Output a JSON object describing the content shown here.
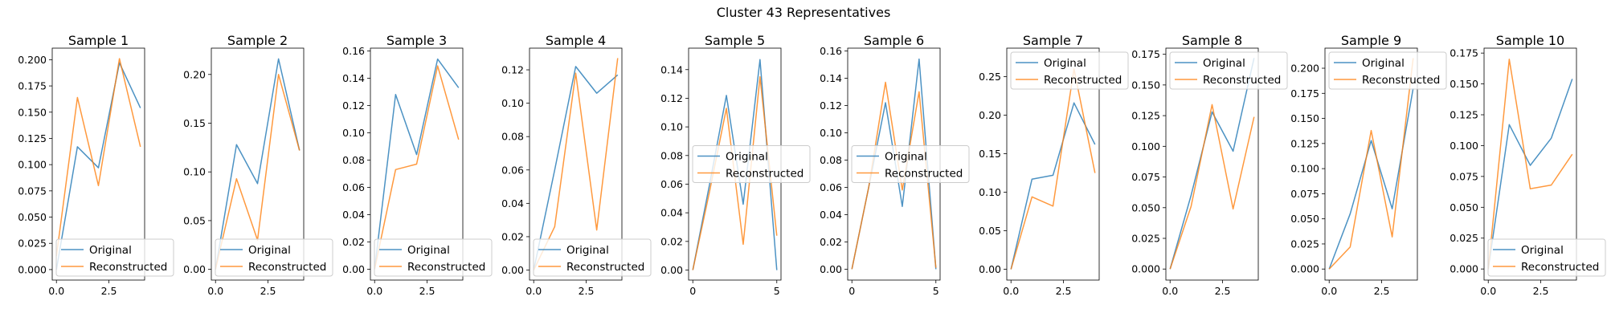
{
  "chart_data": {
    "suptitle": "Cluster 43 Representatives",
    "colors": {
      "original": "#1f77b4",
      "reconstructed": "#ff7f0e"
    },
    "panels": [
      {
        "type": "line",
        "title": "Sample 1",
        "xlim": [
          -0.2,
          4.2
        ],
        "ylim": [
          -0.01,
          0.211
        ],
        "xticks": [
          0,
          2.5
        ],
        "xtick_labels": [
          "0.0",
          "2.5"
        ],
        "yticks": [
          0,
          0.025,
          0.05,
          0.075,
          0.1,
          0.125,
          0.15,
          0.175,
          0.2
        ],
        "ytick_labels": [
          "0.000",
          "0.025",
          "0.050",
          "0.075",
          "0.100",
          "0.125",
          "0.150",
          "0.175",
          "0.200"
        ],
        "legend": "lower-left",
        "series": [
          {
            "name": "Original",
            "x": [
              0,
              1,
              2,
              3,
              4
            ],
            "y": [
              0.0,
              0.117,
              0.097,
              0.197,
              0.154
            ]
          },
          {
            "name": "Reconstructed",
            "x": [
              0,
              1,
              2,
              3,
              4
            ],
            "y": [
              0.013,
              0.164,
              0.08,
              0.201,
              0.117
            ]
          }
        ]
      },
      {
        "type": "line",
        "title": "Sample 2",
        "xlim": [
          -0.2,
          4.2
        ],
        "ylim": [
          -0.011,
          0.227
        ],
        "xticks": [
          0,
          2.5
        ],
        "xtick_labels": [
          "0.0",
          "2.5"
        ],
        "yticks": [
          0,
          0.05,
          0.1,
          0.15,
          0.2
        ],
        "ytick_labels": [
          "0.00",
          "0.05",
          "0.10",
          "0.15",
          "0.20"
        ],
        "legend": "lower-left",
        "series": [
          {
            "name": "Original",
            "x": [
              0,
              1,
              2,
              3,
              4
            ],
            "y": [
              0.0,
              0.128,
              0.088,
              0.216,
              0.122
            ]
          },
          {
            "name": "Reconstructed",
            "x": [
              0,
              1,
              2,
              3,
              4
            ],
            "y": [
              0.0,
              0.093,
              0.03,
              0.2,
              0.122
            ]
          }
        ]
      },
      {
        "type": "line",
        "title": "Sample 3",
        "xlim": [
          -0.2,
          4.2
        ],
        "ylim": [
          -0.008,
          0.162
        ],
        "xticks": [
          0,
          2.5
        ],
        "xtick_labels": [
          "0.0",
          "2.5"
        ],
        "yticks": [
          0,
          0.02,
          0.04,
          0.06,
          0.08,
          0.1,
          0.12,
          0.14,
          0.16
        ],
        "ytick_labels": [
          "0.00",
          "0.02",
          "0.04",
          "0.06",
          "0.08",
          "0.10",
          "0.12",
          "0.14",
          "0.16"
        ],
        "legend": "lower-left",
        "series": [
          {
            "name": "Original",
            "x": [
              0,
              1,
              2,
              3,
              4
            ],
            "y": [
              0.0,
              0.128,
              0.084,
              0.154,
              0.133
            ]
          },
          {
            "name": "Reconstructed",
            "x": [
              0,
              1,
              2,
              3,
              4
            ],
            "y": [
              0.0,
              0.073,
              0.077,
              0.149,
              0.095
            ]
          }
        ]
      },
      {
        "type": "line",
        "title": "Sample 4",
        "xlim": [
          -0.2,
          4.2
        ],
        "ylim": [
          -0.006,
          0.133
        ],
        "xticks": [
          0,
          2.5
        ],
        "xtick_labels": [
          "0.0",
          "2.5"
        ],
        "yticks": [
          0,
          0.02,
          0.04,
          0.06,
          0.08,
          0.1,
          0.12
        ],
        "ytick_labels": [
          "0.00",
          "0.02",
          "0.04",
          "0.06",
          "0.08",
          "0.10",
          "0.12"
        ],
        "legend": "lower-left",
        "series": [
          {
            "name": "Original",
            "x": [
              0,
              1,
              2,
              3,
              4
            ],
            "y": [
              0.0,
              0.06,
              0.122,
              0.106,
              0.117
            ]
          },
          {
            "name": "Reconstructed",
            "x": [
              0,
              1,
              2,
              3,
              4
            ],
            "y": [
              0.0,
              0.026,
              0.118,
              0.024,
              0.127
            ]
          }
        ]
      },
      {
        "type": "line",
        "title": "Sample 5",
        "xlim": [
          -0.25,
          5.25
        ],
        "ylim": [
          -0.007,
          0.155
        ],
        "xticks": [
          0,
          5
        ],
        "xtick_labels": [
          "0",
          "5"
        ],
        "yticks": [
          0,
          0.02,
          0.04,
          0.06,
          0.08,
          0.1,
          0.12,
          0.14
        ],
        "ytick_labels": [
          "0.00",
          "0.02",
          "0.04",
          "0.06",
          "0.08",
          "0.10",
          "0.12",
          "0.14"
        ],
        "legend": "center-left",
        "series": [
          {
            "name": "Original",
            "x": [
              0,
              1,
              2,
              3,
              4,
              5
            ],
            "y": [
              0.0,
              0.06,
              0.122,
              0.046,
              0.147,
              0.0
            ]
          },
          {
            "name": "Reconstructed",
            "x": [
              0,
              1,
              2,
              3,
              4,
              5
            ],
            "y": [
              0.0,
              0.055,
              0.113,
              0.018,
              0.135,
              0.024
            ]
          }
        ]
      },
      {
        "type": "line",
        "title": "Sample 6",
        "xlim": [
          -0.25,
          5.25
        ],
        "ylim": [
          -0.008,
          0.162
        ],
        "xticks": [
          0,
          5
        ],
        "xtick_labels": [
          "0",
          "5"
        ],
        "yticks": [
          0,
          0.02,
          0.04,
          0.06,
          0.08,
          0.1,
          0.12,
          0.14,
          0.16
        ],
        "ytick_labels": [
          "0.00",
          "0.02",
          "0.04",
          "0.06",
          "0.08",
          "0.10",
          "0.12",
          "0.14",
          "0.16"
        ],
        "legend": "center-left",
        "series": [
          {
            "name": "Original",
            "x": [
              0,
              1,
              2,
              3,
              4,
              5
            ],
            "y": [
              0.0,
              0.06,
              0.122,
              0.046,
              0.154,
              0.0
            ]
          },
          {
            "name": "Reconstructed",
            "x": [
              0,
              1,
              2,
              3,
              4,
              5
            ],
            "y": [
              0.0,
              0.06,
              0.137,
              0.058,
              0.13,
              0.001
            ]
          }
        ]
      },
      {
        "type": "line",
        "title": "Sample 7",
        "xlim": [
          -0.2,
          4.2
        ],
        "ylim": [
          -0.014,
          0.287
        ],
        "xticks": [
          0,
          2.5
        ],
        "xtick_labels": [
          "0.0",
          "2.5"
        ],
        "yticks": [
          0,
          0.05,
          0.1,
          0.15,
          0.2,
          0.25
        ],
        "ytick_labels": [
          "0.00",
          "0.05",
          "0.10",
          "0.15",
          "0.20",
          "0.25"
        ],
        "legend": "upper-left",
        "series": [
          {
            "name": "Original",
            "x": [
              0,
              1,
              2,
              3,
              4
            ],
            "y": [
              0.0,
              0.117,
              0.122,
              0.216,
              0.162
            ]
          },
          {
            "name": "Reconstructed",
            "x": [
              0,
              1,
              2,
              3,
              4
            ],
            "y": [
              0.0,
              0.094,
              0.082,
              0.26,
              0.125
            ]
          }
        ]
      },
      {
        "type": "line",
        "title": "Sample 8",
        "xlim": [
          -0.2,
          4.2
        ],
        "ylim": [
          -0.009,
          0.18
        ],
        "xticks": [
          0,
          2.5
        ],
        "xtick_labels": [
          "0.0",
          "2.5"
        ],
        "yticks": [
          0,
          0.025,
          0.05,
          0.075,
          0.1,
          0.125,
          0.15,
          0.175
        ],
        "ytick_labels": [
          "0.000",
          "0.025",
          "0.050",
          "0.075",
          "0.100",
          "0.125",
          "0.150",
          "0.175"
        ],
        "legend": "upper-left",
        "series": [
          {
            "name": "Original",
            "x": [
              0,
              1,
              2,
              3,
              4
            ],
            "y": [
              0.0,
              0.06,
              0.128,
              0.096,
              0.172
            ]
          },
          {
            "name": "Reconstructed",
            "x": [
              0,
              1,
              2,
              3,
              4
            ],
            "y": [
              0.0,
              0.051,
              0.134,
              0.049,
              0.124
            ]
          }
        ]
      },
      {
        "type": "line",
        "title": "Sample 9",
        "xlim": [
          -0.2,
          4.2
        ],
        "ylim": [
          -0.011,
          0.22
        ],
        "xticks": [
          0,
          2.5
        ],
        "xtick_labels": [
          "0.0",
          "2.5"
        ],
        "yticks": [
          0,
          0.025,
          0.05,
          0.075,
          0.1,
          0.125,
          0.15,
          0.175,
          0.2
        ],
        "ytick_labels": [
          "0.000",
          "0.025",
          "0.050",
          "0.075",
          "0.100",
          "0.125",
          "0.150",
          "0.175",
          "0.200"
        ],
        "legend": "upper-left",
        "series": [
          {
            "name": "Original",
            "x": [
              0,
              1,
              2,
              3,
              4
            ],
            "y": [
              0.0,
              0.055,
              0.128,
              0.06,
              0.18
            ]
          },
          {
            "name": "Reconstructed",
            "x": [
              0,
              1,
              2,
              3,
              4
            ],
            "y": [
              0.0,
              0.022,
              0.138,
              0.032,
              0.21
            ]
          }
        ]
      },
      {
        "type": "line",
        "title": "Sample 10",
        "xlim": [
          -0.2,
          4.2
        ],
        "ylim": [
          -0.009,
          0.179
        ],
        "xticks": [
          0,
          2.5
        ],
        "xtick_labels": [
          "0.0",
          "2.5"
        ],
        "yticks": [
          0,
          0.025,
          0.05,
          0.075,
          0.1,
          0.125,
          0.15,
          0.175
        ],
        "ytick_labels": [
          "0.000",
          "0.025",
          "0.050",
          "0.075",
          "0.100",
          "0.125",
          "0.150",
          "0.175"
        ],
        "legend": "lower-left",
        "series": [
          {
            "name": "Original",
            "x": [
              0,
              1,
              2,
              3,
              4
            ],
            "y": [
              0.0,
              0.117,
              0.084,
              0.106,
              0.154
            ]
          },
          {
            "name": "Reconstructed",
            "x": [
              0,
              1,
              2,
              3,
              4
            ],
            "y": [
              0.0,
              0.17,
              0.065,
              0.068,
              0.093
            ]
          }
        ]
      }
    ]
  }
}
